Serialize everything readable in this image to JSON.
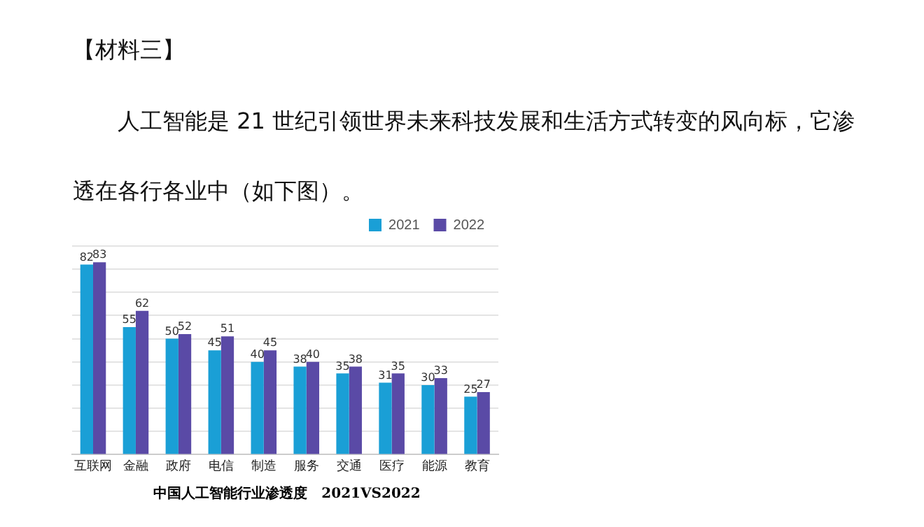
{
  "chart_data": {
    "type": "bar",
    "title": "【材料三】",
    "subtitle": "人工智能是 21 世纪引领世界未来科技发展和生活方式转变的风向标，它渗透在各行各业中（如下图）。",
    "categories": [
      "互联网",
      "金融",
      "政府",
      "电信",
      "制造",
      "服务",
      "交通",
      "医疗",
      "能源",
      "教育"
    ],
    "series": [
      {
        "name": "2021",
        "color": "#1a9fd6",
        "values": [
          82,
          55,
          50,
          45,
          40,
          38,
          35,
          31,
          30,
          25
        ]
      },
      {
        "name": "2022",
        "color": "#5a4aa6",
        "values": [
          83,
          62,
          52,
          51,
          45,
          40,
          38,
          35,
          33,
          27
        ]
      }
    ],
    "ylim": [
      0,
      90
    ],
    "yticks": [
      {
        "value": 0,
        "label": null
      },
      {
        "value": 10,
        "label": null
      },
      {
        "value": 20,
        "label": null
      },
      {
        "value": 30,
        "label": null
      },
      {
        "value": 40,
        "label": null
      },
      {
        "value": 50,
        "label": null
      },
      {
        "value": 60,
        "label": null
      },
      {
        "value": 70,
        "label": null
      },
      {
        "value": 80,
        "label": null
      },
      {
        "value": 90,
        "label": null
      }
    ],
    "tick_labels": "x",
    "grid": "y",
    "legend": "top right",
    "data_labels": true,
    "annotations": [
      "中国人工智能行业渗透度　2021VS2022"
    ]
  }
}
